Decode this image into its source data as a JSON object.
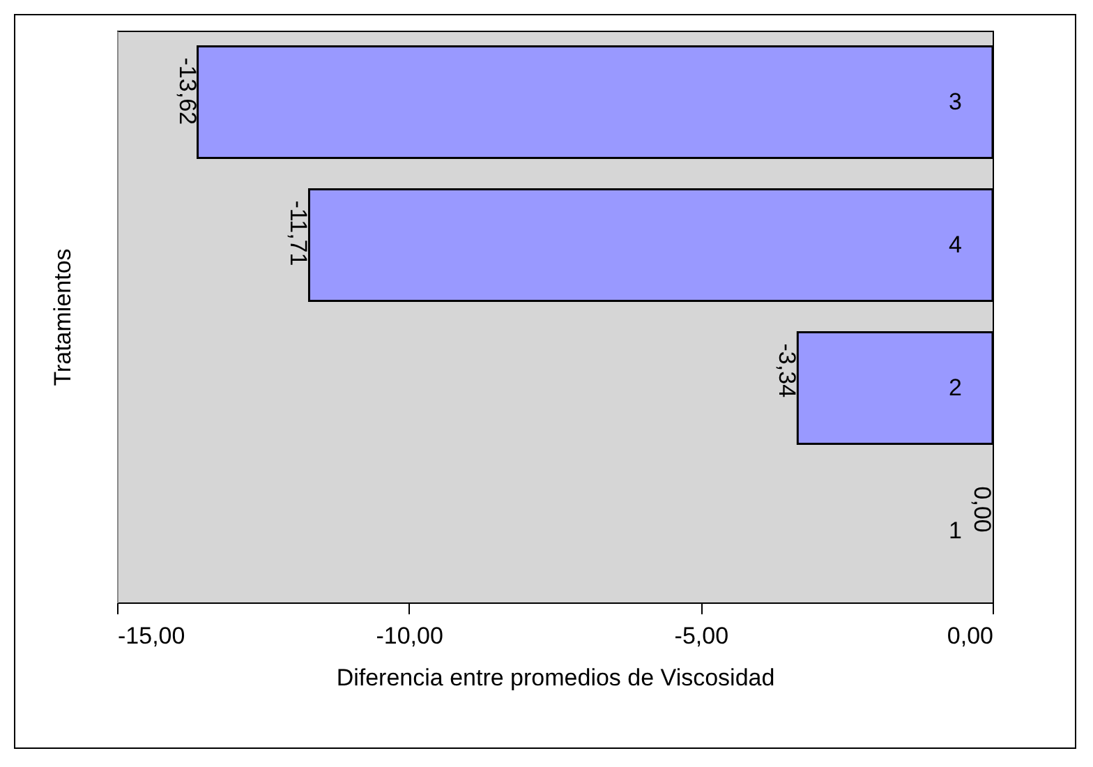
{
  "chart_data": {
    "type": "bar",
    "orientation": "horizontal",
    "ylabel": "Tratamientos",
    "xlabel": "Diferencia entre promedios de Viscosidad",
    "categories": [
      "3",
      "4",
      "2",
      "1"
    ],
    "values": [
      -13.62,
      -11.71,
      -3.34,
      0
    ],
    "value_labels": [
      "-13,62",
      "-11,71",
      "-3,34",
      "0,00"
    ],
    "color": "#9999ff",
    "xlim": [
      -15,
      0
    ],
    "xticks": [
      {
        "value": -15,
        "label": "-15,00"
      },
      {
        "value": -10,
        "label": "-10,00"
      },
      {
        "value": -5,
        "label": "-5,00"
      },
      {
        "value": 0,
        "label": "0,00"
      }
    ],
    "grid": false
  }
}
